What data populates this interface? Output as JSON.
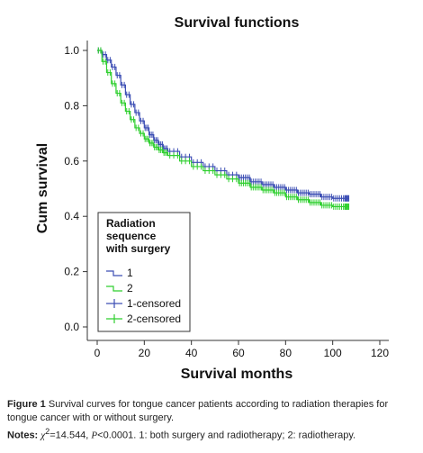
{
  "figure_caption": {
    "label": "Figure 1",
    "text": "Survival curves for tongue cancer patients according to radiation therapies for tongue cancer with or without surgery.",
    "notes_label": "Notes:",
    "notes_chi": "χ",
    "notes_sup": "2",
    "notes_stat": "=14.544, ",
    "notes_p": "P",
    "notes_rest": "<0.0001. 1: both surgery and radiotherapy; 2: radiotherapy."
  },
  "colors": {
    "series_1": "#3c4eb4",
    "series_2": "#2fcf2f",
    "axis": "#333333",
    "legend_border": "#333333"
  },
  "chart_data": {
    "type": "line",
    "title": "Survival functions",
    "xlabel": "Survival months",
    "ylabel": "Cum survival",
    "xlim": [
      0,
      120
    ],
    "ylim": [
      0,
      1.0
    ],
    "xticks": [
      "0",
      "20",
      "40",
      "60",
      "80",
      "100",
      "120"
    ],
    "yticks": [
      "0.0",
      "0.2",
      "0.4",
      "0.6",
      "0.8",
      "1.0"
    ],
    "step": true,
    "legend": {
      "placement": "bottom-left",
      "title": [
        "Radiation",
        "sequence",
        "with surgery"
      ],
      "items": [
        "1",
        "2",
        "1-censored",
        "2-censored"
      ]
    },
    "series": [
      {
        "name": "1",
        "censored_label": "1-censored",
        "x": [
          0,
          2,
          4,
          6,
          8,
          10,
          12,
          14,
          16,
          18,
          20,
          22,
          24,
          26,
          28,
          30,
          35,
          40,
          45,
          50,
          55,
          60,
          65,
          70,
          75,
          80,
          85,
          90,
          95,
          100,
          105,
          107
        ],
        "y": [
          1.0,
          0.985,
          0.965,
          0.94,
          0.91,
          0.875,
          0.84,
          0.805,
          0.775,
          0.745,
          0.72,
          0.695,
          0.675,
          0.66,
          0.645,
          0.635,
          0.615,
          0.595,
          0.58,
          0.565,
          0.55,
          0.54,
          0.525,
          0.515,
          0.505,
          0.495,
          0.485,
          0.48,
          0.47,
          0.465,
          0.465,
          0.465
        ]
      },
      {
        "name": "2",
        "censored_label": "2-censored",
        "x": [
          0,
          2,
          4,
          6,
          8,
          10,
          12,
          14,
          16,
          18,
          20,
          22,
          24,
          26,
          28,
          30,
          35,
          40,
          45,
          50,
          55,
          60,
          65,
          70,
          75,
          80,
          85,
          90,
          95,
          100,
          105,
          107
        ],
        "y": [
          1.0,
          0.96,
          0.92,
          0.88,
          0.845,
          0.81,
          0.78,
          0.75,
          0.72,
          0.7,
          0.68,
          0.665,
          0.65,
          0.64,
          0.63,
          0.62,
          0.6,
          0.58,
          0.565,
          0.55,
          0.535,
          0.52,
          0.505,
          0.495,
          0.485,
          0.47,
          0.46,
          0.45,
          0.44,
          0.435,
          0.435,
          0.435
        ]
      }
    ]
  }
}
